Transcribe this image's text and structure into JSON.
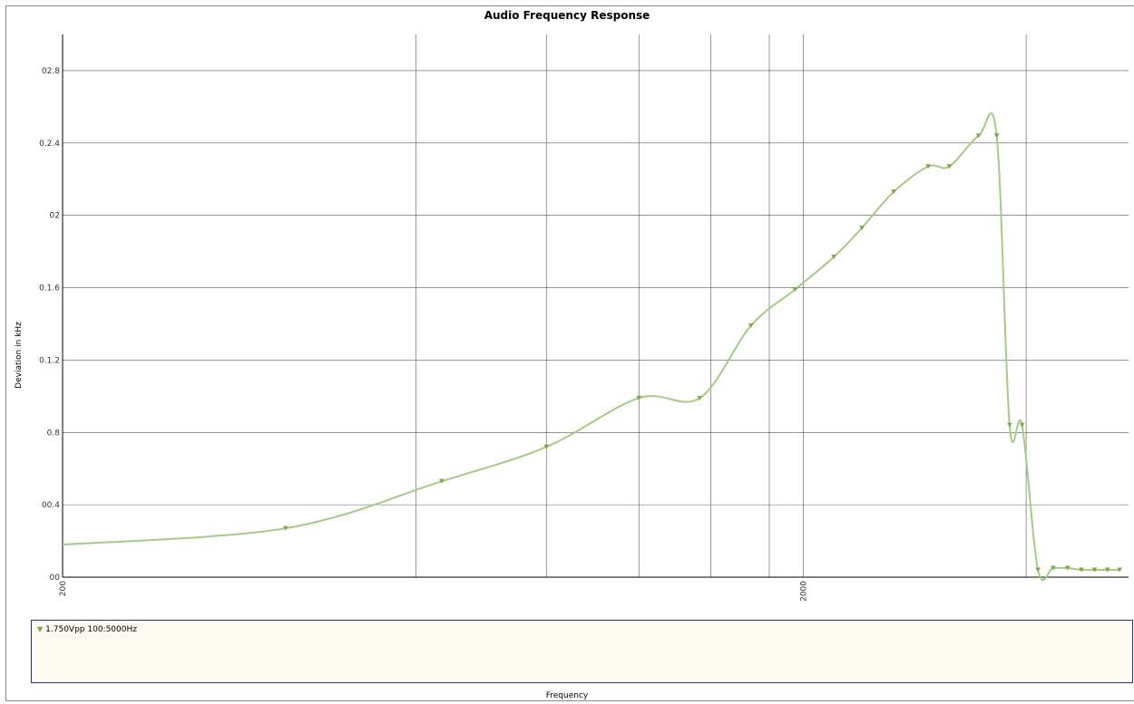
{
  "chart_data": {
    "type": "line",
    "title": "Audio Frequency Response",
    "xlabel": "Frequency",
    "ylabel": "Deviation in kHz",
    "x_scale": "log",
    "xlim": [
      200,
      5500
    ],
    "ylim": [
      0,
      3.0
    ],
    "x_ticks": [
      200,
      2000
    ],
    "x_tick_labels": [
      "200",
      "2000"
    ],
    "y_ticks": [
      0,
      0.4,
      0.8,
      1.2,
      1.6,
      2.0,
      2.4,
      2.8
    ],
    "y_tick_labels": [
      "00",
      "00.4",
      "0.8",
      "0.1.2",
      "0.1.6",
      "02",
      "0.2.4",
      "02.8"
    ],
    "x_gridlines": [
      600,
      900,
      1200,
      1500,
      1800,
      2000,
      4000
    ],
    "grid": true,
    "legend_position": "bottom",
    "colors": {
      "series": "#a3cb83",
      "marker": "#7aa53f",
      "grid": "#555555",
      "legend_bg": "#fdfaf1",
      "legend_border": "#2b2b8f"
    },
    "series": [
      {
        "name": "1.750Vpp 100:5000Hz",
        "x": [
          200,
          400,
          650,
          900,
          1200,
          1450,
          1700,
          1950,
          2200,
          2400,
          2650,
          2950,
          3150,
          3450,
          3650,
          3800,
          3950,
          4150,
          4350,
          4550,
          4750,
          4950,
          5150,
          5350
        ],
        "y": [
          0.18,
          0.27,
          0.53,
          0.72,
          0.99,
          0.99,
          1.39,
          1.59,
          1.77,
          1.93,
          2.13,
          2.27,
          2.27,
          2.44,
          2.44,
          0.84,
          0.84,
          0.04,
          0.05,
          0.05,
          0.04,
          0.04,
          0.04,
          0.04
        ],
        "markers": [
          false,
          true,
          true,
          true,
          true,
          true,
          true,
          true,
          true,
          true,
          true,
          true,
          true,
          true,
          true,
          true,
          true,
          true,
          true,
          true,
          true,
          true,
          true,
          true
        ]
      }
    ]
  }
}
